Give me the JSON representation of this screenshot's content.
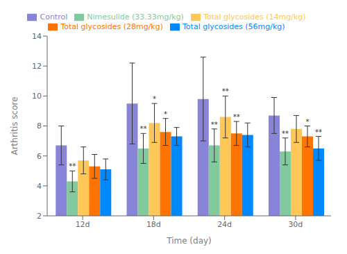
{
  "chart_data": {
    "type": "bar",
    "xlabel": "Time (day)",
    "ylabel": "Arthritis score",
    "categories": [
      "12d",
      "18d",
      "24d",
      "30d"
    ],
    "series": [
      {
        "name": "Control",
        "color": "#8884d8",
        "values": [
          6.7,
          9.5,
          9.8,
          8.7
        ],
        "errors": [
          1.3,
          2.7,
          2.8,
          1.2
        ],
        "annotations": [
          null,
          null,
          null,
          null
        ]
      },
      {
        "name": "Nimesulide (33.33mg/kg)",
        "color": "#82ca9d",
        "values": [
          4.3,
          6.5,
          6.7,
          6.3
        ],
        "errors": [
          0.7,
          1.0,
          1.1,
          0.9
        ],
        "annotations": [
          "**",
          "**",
          "**",
          "**"
        ]
      },
      {
        "name": "Total glycosides (14mg/kg)",
        "color": "#ffc658",
        "values": [
          5.7,
          8.2,
          8.6,
          7.8
        ],
        "errors": [
          0.9,
          1.3,
          1.4,
          0.9
        ],
        "annotations": [
          null,
          "*",
          "**",
          null
        ]
      },
      {
        "name": "Total glycosides (28mg/kg)",
        "color": "#ff7300",
        "values": [
          5.3,
          7.6,
          7.5,
          7.3
        ],
        "errors": [
          0.8,
          0.9,
          0.8,
          0.7
        ],
        "annotations": [
          null,
          "*",
          "**",
          "*"
        ]
      },
      {
        "name": "Total glycosides (56mg/kg)",
        "color": "#0088fe",
        "values": [
          5.1,
          7.3,
          7.4,
          6.5
        ],
        "errors": [
          0.7,
          0.6,
          0.8,
          0.8
        ],
        "annotations": [
          null,
          null,
          null,
          "**"
        ]
      }
    ],
    "ylim": [
      2,
      14
    ],
    "yticks": [
      2,
      4,
      6,
      8,
      10,
      12,
      14
    ],
    "grid": false
  }
}
